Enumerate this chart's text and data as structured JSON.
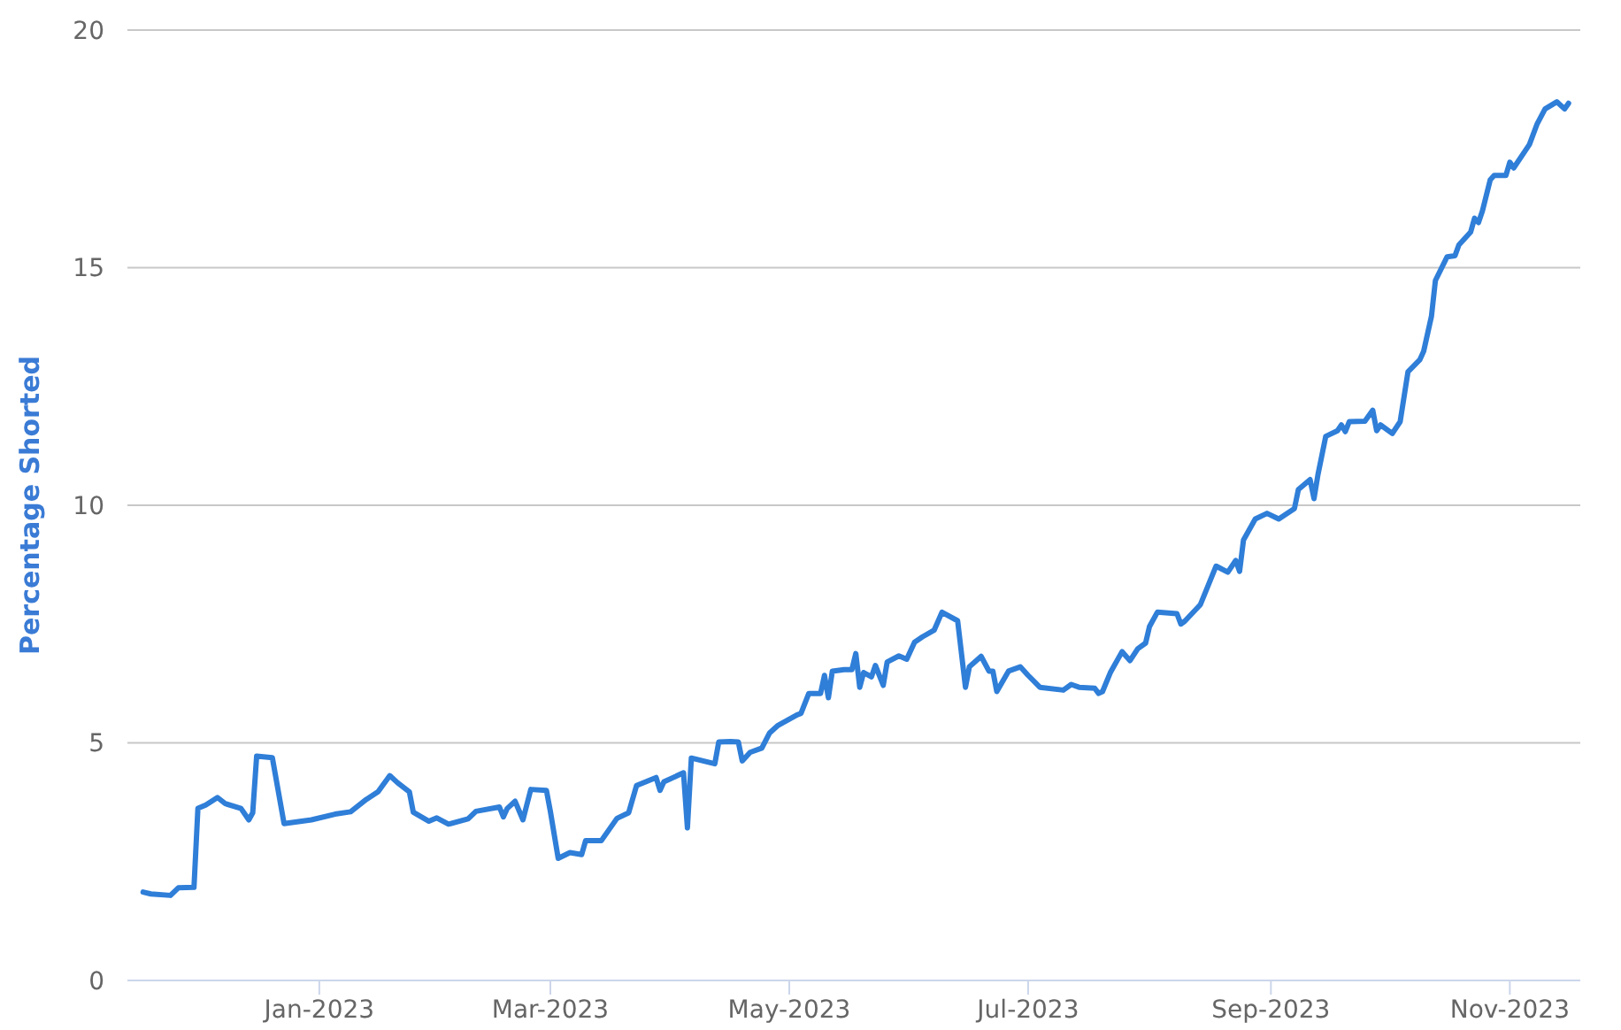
{
  "chart_data": {
    "type": "line",
    "ylabel": "Percentage Shorted",
    "grid": "y",
    "marker": "none",
    "line_style": "solid",
    "xlim": [
      "2022-11-13",
      "2023-11-19"
    ],
    "xticks": [
      {
        "value": "2023-01-01",
        "label": "Jan-2023"
      },
      {
        "value": "2023-03-01",
        "label": "Mar-2023"
      },
      {
        "value": "2023-05-01",
        "label": "May-2023"
      },
      {
        "value": "2023-07-01",
        "label": "Jul-2023"
      },
      {
        "value": "2023-09-01",
        "label": "Sep-2023"
      },
      {
        "value": "2023-11-01",
        "label": "Nov-2023"
      }
    ],
    "ylim": [
      0,
      20
    ],
    "yticks": [
      0,
      5,
      10,
      15,
      20
    ],
    "x": [
      "2022-11-17",
      "2022-11-19",
      "2022-11-24",
      "2022-11-26",
      "2022-11-30",
      "2022-12-01",
      "2022-12-03",
      "2022-12-06",
      "2022-12-08",
      "2022-12-12",
      "2022-12-14",
      "2022-12-15",
      "2022-12-16",
      "2022-12-20",
      "2022-12-23",
      "2022-12-30",
      "2023-01-05",
      "2023-01-09",
      "2023-01-13",
      "2023-01-16",
      "2023-01-19",
      "2023-01-21",
      "2023-01-24",
      "2023-01-25",
      "2023-01-29",
      "2023-01-31",
      "2023-02-03",
      "2023-02-08",
      "2023-02-10",
      "2023-02-16",
      "2023-02-17",
      "2023-02-18",
      "2023-02-20",
      "2023-02-22",
      "2023-02-24",
      "2023-02-28",
      "2023-03-01",
      "2023-03-03",
      "2023-03-06",
      "2023-03-09",
      "2023-03-10",
      "2023-03-14",
      "2023-03-18",
      "2023-03-21",
      "2023-03-23",
      "2023-03-28",
      "2023-03-29",
      "2023-03-30",
      "2023-04-04",
      "2023-04-05",
      "2023-04-06",
      "2023-04-12",
      "2023-04-13",
      "2023-04-16",
      "2023-04-18",
      "2023-04-19",
      "2023-04-21",
      "2023-04-24",
      "2023-04-26",
      "2023-04-28",
      "2023-05-03",
      "2023-05-04",
      "2023-05-06",
      "2023-05-09",
      "2023-05-10",
      "2023-05-11",
      "2023-05-12",
      "2023-05-15",
      "2023-05-17",
      "2023-05-18",
      "2023-05-19",
      "2023-05-20",
      "2023-05-22",
      "2023-05-23",
      "2023-05-25",
      "2023-05-26",
      "2023-05-29",
      "2023-05-31",
      "2023-06-02",
      "2023-06-04",
      "2023-06-07",
      "2023-06-09",
      "2023-06-13",
      "2023-06-15",
      "2023-06-16",
      "2023-06-19",
      "2023-06-21",
      "2023-06-22",
      "2023-06-23",
      "2023-06-26",
      "2023-06-29",
      "2023-07-01",
      "2023-07-04",
      "2023-07-10",
      "2023-07-12",
      "2023-07-14",
      "2023-07-18",
      "2023-07-19",
      "2023-07-20",
      "2023-07-22",
      "2023-07-25",
      "2023-07-27",
      "2023-07-29",
      "2023-07-31",
      "2023-08-01",
      "2023-08-03",
      "2023-08-08",
      "2023-08-09",
      "2023-08-10",
      "2023-08-14",
      "2023-08-18",
      "2023-08-21",
      "2023-08-23",
      "2023-08-24",
      "2023-08-25",
      "2023-08-28",
      "2023-08-31",
      "2023-09-03",
      "2023-09-07",
      "2023-09-08",
      "2023-09-11",
      "2023-09-12",
      "2023-09-13",
      "2023-09-15",
      "2023-09-18",
      "2023-09-19",
      "2023-09-20",
      "2023-09-21",
      "2023-09-25",
      "2023-09-27",
      "2023-09-28",
      "2023-09-29",
      "2023-10-02",
      "2023-10-04",
      "2023-10-06",
      "2023-10-09",
      "2023-10-10",
      "2023-10-12",
      "2023-10-13",
      "2023-10-16",
      "2023-10-18",
      "2023-10-19",
      "2023-10-22",
      "2023-10-23",
      "2023-10-24",
      "2023-10-25",
      "2023-10-27",
      "2023-10-28",
      "2023-10-31",
      "2023-11-01",
      "2023-11-02",
      "2023-11-06",
      "2023-11-08",
      "2023-11-10",
      "2023-11-13",
      "2023-11-15",
      "2023-11-16"
    ],
    "series": [
      {
        "color": "#2f7ed8",
        "values": [
          1.86,
          1.82,
          1.79,
          1.95,
          1.96,
          3.62,
          3.69,
          3.85,
          3.72,
          3.62,
          3.38,
          3.53,
          4.72,
          4.69,
          3.3,
          3.38,
          3.5,
          3.55,
          3.81,
          3.97,
          4.31,
          4.16,
          3.97,
          3.54,
          3.35,
          3.42,
          3.29,
          3.4,
          3.56,
          3.65,
          3.44,
          3.62,
          3.77,
          3.38,
          4.02,
          4.0,
          3.56,
          2.57,
          2.69,
          2.65,
          2.94,
          2.94,
          3.41,
          3.53,
          4.1,
          4.27,
          4.0,
          4.18,
          4.37,
          3.21,
          4.68,
          4.56,
          5.02,
          5.03,
          5.02,
          4.62,
          4.8,
          4.89,
          5.21,
          5.36,
          5.59,
          5.62,
          6.04,
          6.04,
          6.42,
          5.95,
          6.51,
          6.54,
          6.54,
          6.88,
          6.17,
          6.48,
          6.39,
          6.63,
          6.21,
          6.7,
          6.83,
          6.76,
          7.12,
          7.23,
          7.37,
          7.75,
          7.57,
          6.17,
          6.6,
          6.82,
          6.51,
          6.51,
          6.08,
          6.51,
          6.6,
          6.42,
          6.17,
          6.11,
          6.23,
          6.17,
          6.15,
          6.04,
          6.08,
          6.48,
          6.92,
          6.73,
          6.98,
          7.1,
          7.45,
          7.75,
          7.72,
          7.5,
          7.56,
          7.91,
          8.72,
          8.59,
          8.84,
          8.61,
          9.27,
          9.71,
          9.83,
          9.71,
          9.93,
          10.33,
          10.54,
          10.14,
          10.64,
          11.45,
          11.57,
          11.69,
          11.55,
          11.76,
          11.77,
          12.0,
          11.57,
          11.69,
          11.51,
          11.76,
          12.81,
          13.06,
          13.24,
          13.98,
          14.73,
          15.23,
          15.25,
          15.48,
          15.75,
          16.04,
          15.95,
          16.19,
          16.85,
          16.94,
          16.94,
          17.22,
          17.1,
          17.59,
          18.03,
          18.34,
          18.49,
          18.34,
          18.46
        ]
      }
    ]
  }
}
